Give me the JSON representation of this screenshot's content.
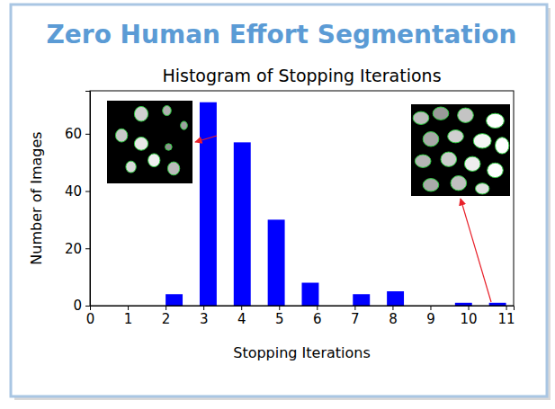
{
  "header": {
    "title": "Zero Human Effort Segmentation"
  },
  "chart_data": {
    "type": "histogram",
    "title": "Histogram of Stopping Iterations",
    "x_label": "Stopping Iterations",
    "y_label": "Number of Images",
    "bins": [
      2,
      2.45,
      2.9,
      3.35,
      3.8,
      4.25,
      4.7,
      5.15,
      5.6,
      6.05,
      6.5,
      6.95,
      7.4,
      7.85,
      8.3,
      8.75,
      9.2,
      9.65,
      10.1,
      10.55,
      11
    ],
    "values": [
      4,
      0,
      71,
      0,
      57,
      0,
      30,
      0,
      8,
      0,
      0,
      4,
      0,
      5,
      0,
      0,
      0,
      1,
      0,
      1
    ],
    "color": "#0000ff",
    "xlim": [
      0,
      11.2
    ],
    "xticks": [
      0,
      1,
      2,
      3,
      4,
      5,
      6,
      7,
      8,
      9,
      10,
      11
    ],
    "ylim": [
      0,
      75
    ],
    "yticks": [
      0,
      20,
      40,
      60
    ],
    "grid": false
  }
}
